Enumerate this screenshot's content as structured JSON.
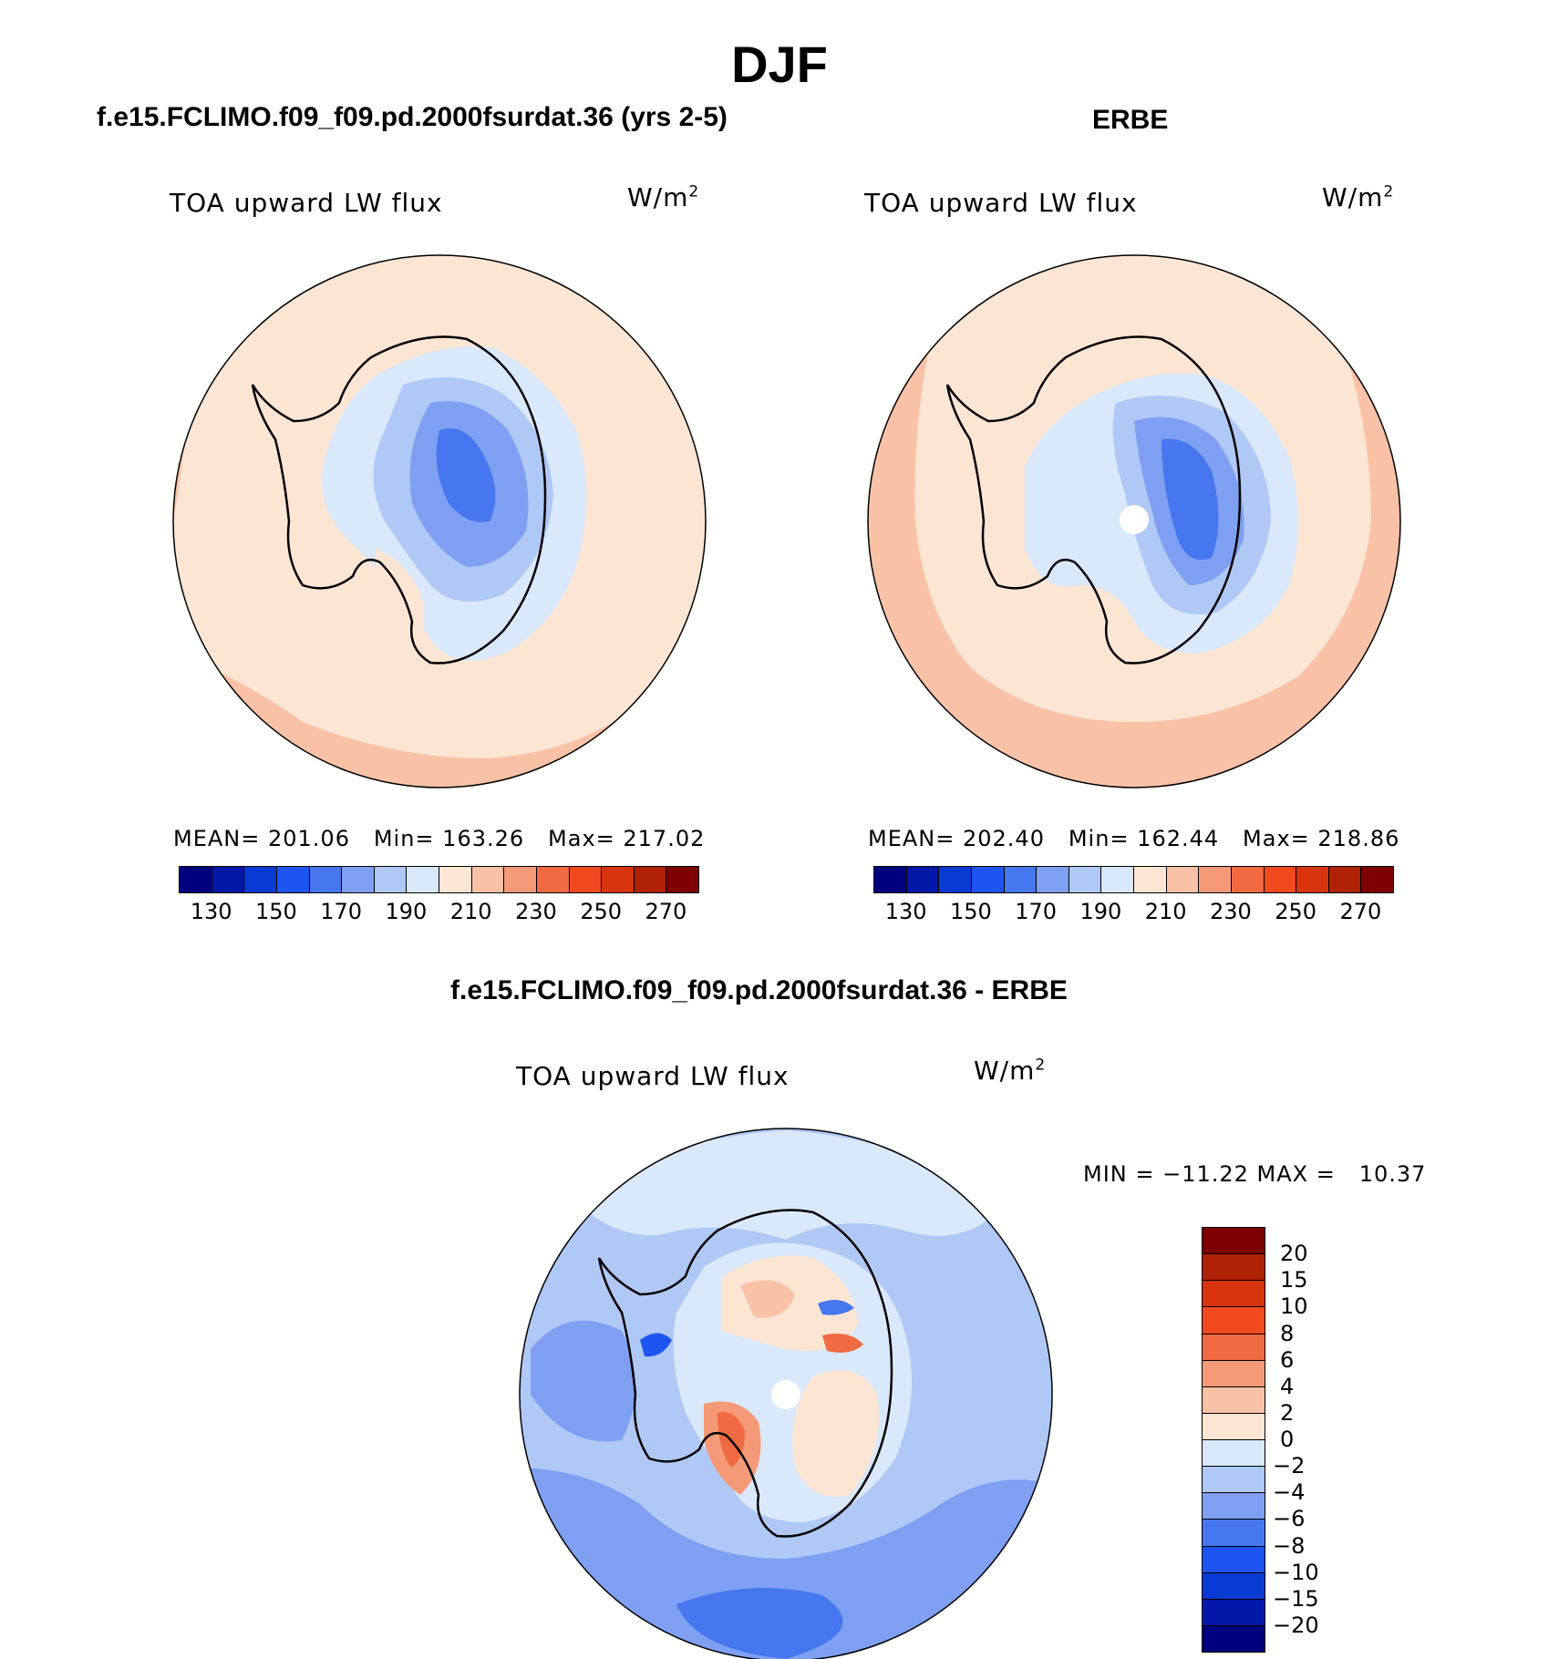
{
  "figure": {
    "title": "DJF",
    "units_base": "W/m",
    "units_exp": "2"
  },
  "panel_model": {
    "case_title": "f.e15.FCLIMO.f09_f09.pd.2000fsurdat.36 (yrs 2-5)",
    "variable": "TOA upward LW flux",
    "stats": "MEAN= 201.06   Min= 163.26   Max= 217.02",
    "colorbar_ticks": [
      "130",
      "150",
      "170",
      "190",
      "210",
      "230",
      "250",
      "270"
    ]
  },
  "panel_obs": {
    "case_title": "ERBE",
    "variable": "TOA upward LW flux",
    "stats": "MEAN= 202.40   Min= 162.44   Max= 218.86",
    "colorbar_ticks": [
      "130",
      "150",
      "170",
      "190",
      "210",
      "230",
      "250",
      "270"
    ]
  },
  "panel_diff": {
    "case_title": "f.e15.FCLIMO.f09_f09.pd.2000fsurdat.36 - ERBE",
    "variable": "TOA upward LW flux",
    "stats": "MIN = −11.22 MAX =   10.37",
    "colorbar_ticks": [
      "20",
      "15",
      "10",
      "8",
      "6",
      "4",
      "2",
      "0",
      "−2",
      "−4",
      "−6",
      "−8",
      "−10",
      "−15",
      "−20"
    ]
  },
  "colors": {
    "abs_scale": [
      "#00007f",
      "#0318a8",
      "#0a3ad4",
      "#1e55f0",
      "#4677ee",
      "#7fa0f2",
      "#b0c8f6",
      "#d9e8fb",
      "#fde5d4",
      "#f9c2a6",
      "#f59a78",
      "#f06a42",
      "#f04a1e",
      "#d8340e",
      "#b02205",
      "#7f0000"
    ],
    "diff_scale": [
      "#7f0000",
      "#b02205",
      "#d8340e",
      "#f04a1e",
      "#f06a42",
      "#f59a78",
      "#f9c2a6",
      "#fde5d4",
      "#d9e8fb",
      "#b0c8f6",
      "#7fa0f2",
      "#4677ee",
      "#1e55f0",
      "#0a3ad4",
      "#0318a8",
      "#00007f"
    ]
  }
}
